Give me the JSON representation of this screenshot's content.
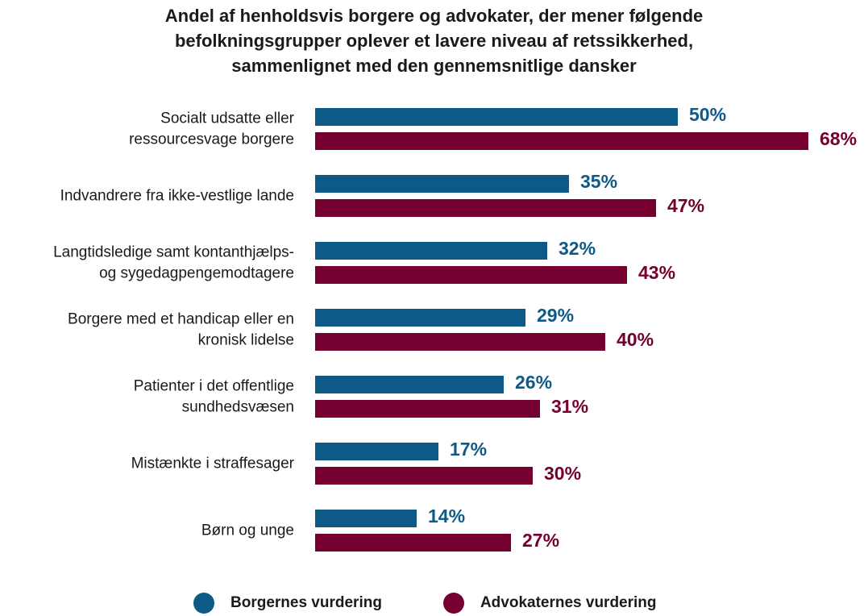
{
  "chart_data": {
    "type": "bar",
    "orientation": "horizontal",
    "title_lines": [
      "Andel af henholdsvis borgere og advokater, der mener følgende",
      "befolkningsgrupper oplever et lavere niveau af retssikkerhed,",
      "sammenlignet med den gennemsnitlige dansker"
    ],
    "categories": [
      [
        "Socialt udsatte eller",
        "ressourcesvage borgere"
      ],
      [
        "Indvandrere fra ikke-vestlige lande"
      ],
      [
        "Langtidsledige samt kontanthjælps-",
        "og sygedagpengemodtagere"
      ],
      [
        "Borgere med et handicap eller en",
        "kronisk lidelse"
      ],
      [
        "Patienter i det offentlige",
        "sundhedsvæsen"
      ],
      [
        "Mistænkte i straffesager"
      ],
      [
        "Børn og unge"
      ]
    ],
    "series": [
      {
        "name": "Borgernes vurdering",
        "color": "#0e5a87",
        "values": [
          50,
          35,
          32,
          29,
          26,
          17,
          14
        ],
        "labels": [
          "50%",
          "35%",
          "32%",
          "29%",
          "26%",
          "17%",
          "14%"
        ]
      },
      {
        "name": "Advokaternes vurdering",
        "color": "#750030",
        "values": [
          68,
          47,
          43,
          40,
          31,
          30,
          27
        ],
        "labels": [
          "68%",
          "47%",
          "43%",
          "40%",
          "31%",
          "30%",
          "27%"
        ]
      }
    ],
    "unit": "%",
    "xlim": [
      0,
      68
    ],
    "grid": false,
    "legend_position": "bottom"
  }
}
